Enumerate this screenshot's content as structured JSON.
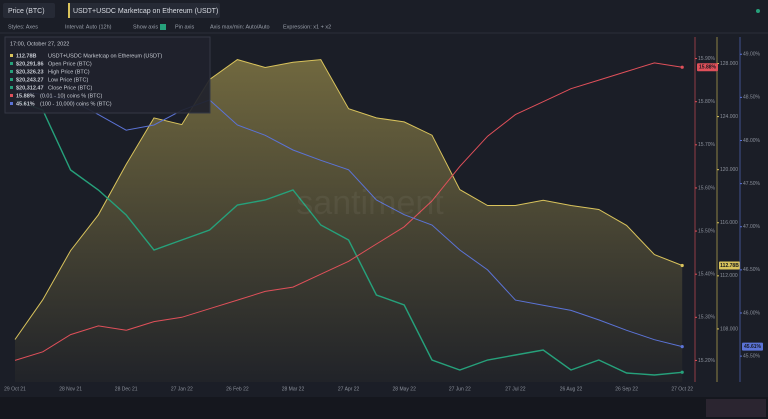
{
  "toolbar": {
    "tabs": [
      "Price (BTC)",
      "USDT+USDC Marketcap on Ethereum (USDT)"
    ],
    "settings": [
      "Styles: Axes",
      "Interval: Auto (12h)",
      "Show axis",
      "Pin axis",
      "Axis max/min: Auto/Auto",
      "Expression: x1 + x2"
    ]
  },
  "tooltip": {
    "title": "17:00, October 27, 2022",
    "rows": [
      {
        "value": "$20,291.86",
        "label": "Open Price (BTC)"
      },
      {
        "value": "$20,326.23",
        "label": "High Price (BTC)"
      },
      {
        "value": "$20,243.27",
        "label": "Low Price (BTC)"
      }
    ]
  },
  "chart_data": {
    "type": "line",
    "watermark": "santiment",
    "categories": [
      "29 Oct 21",
      null,
      "28 Nov 21",
      null,
      "28 Dec 21",
      null,
      "27 Jan 22",
      null,
      "26 Feb 22",
      null,
      "28 Mar 22",
      null,
      "27 Apr 22",
      null,
      "28 May 22",
      null,
      "27 Jun 22",
      null,
      "27 Jul 22",
      null,
      "26 Aug 22",
      null,
      "26 Sep 22",
      null,
      "27 Oct 22"
    ],
    "series": [
      {
        "name": "USDT+USDC Marketcap on Ethereum (USDT)",
        "color": "#d9c35c",
        "fill": true,
        "values": [
          107.2,
          110.2,
          113.9,
          116.6,
          120.4,
          123.9,
          123.4,
          126.8,
          128.3,
          127.7,
          128.1,
          128.3,
          124.6,
          123.9,
          123.6,
          122.6,
          118.5,
          117.3,
          117.3,
          117.7,
          117.3,
          117.0,
          115.8,
          113.6,
          112.78
        ],
        "value_labels": [
          null,
          null,
          null,
          null,
          null,
          null,
          null,
          null,
          null,
          null,
          null,
          null,
          null,
          null,
          null,
          null,
          null,
          null,
          null,
          null,
          null,
          null,
          null,
          null,
          "112.78B"
        ],
        "ylim": [
          104,
          130
        ],
        "yticks": [
          {
            "value": 108,
            "label": "108.000"
          },
          {
            "value": 112,
            "label": "112.000"
          },
          {
            "value": 116,
            "label": "116.000"
          },
          {
            "value": 120,
            "label": "120.000"
          },
          {
            "value": 124,
            "label": "124.000"
          },
          {
            "value": 128,
            "label": "128.000"
          }
        ]
      },
      {
        "name": "Close Price (BTC)",
        "color": "#26a17b",
        "fill": false,
        "values": [
          59850,
          58390,
          49680,
          46780,
          43150,
          38070,
          39520,
          40970,
          44600,
          45330,
          46780,
          41700,
          39520,
          31530,
          30080,
          22090,
          20640,
          22090,
          22820,
          23550,
          20640,
          22090,
          20210,
          19920,
          20312.47
        ],
        "value_labels": [
          null,
          null,
          null,
          null,
          null,
          null,
          null,
          null,
          null,
          null,
          null,
          null,
          null,
          null,
          null,
          null,
          null,
          null,
          null,
          null,
          null,
          null,
          null,
          null,
          "$20,312.47"
        ],
        "ylim": [
          18900,
          69000
        ]
      },
      {
        "name": "(0.01 - 10) coins % (BTC)",
        "color": "#e0505a",
        "fill": false,
        "values": [
          15.2,
          15.22,
          15.26,
          15.28,
          15.27,
          15.29,
          15.3,
          15.32,
          15.34,
          15.36,
          15.37,
          15.4,
          15.43,
          15.47,
          15.51,
          15.57,
          15.65,
          15.72,
          15.77,
          15.8,
          15.83,
          15.85,
          15.87,
          15.89,
          15.88
        ],
        "value_labels": [
          null,
          null,
          null,
          null,
          null,
          null,
          null,
          null,
          null,
          null,
          null,
          null,
          null,
          null,
          null,
          null,
          null,
          null,
          null,
          null,
          null,
          null,
          null,
          null,
          "15.88%"
        ],
        "ylim": [
          15.15,
          15.95
        ],
        "yticks": [
          {
            "value": 15.2,
            "label": "15.20%"
          },
          {
            "value": 15.3,
            "label": "15.30%"
          },
          {
            "value": 15.4,
            "label": "15.40%"
          },
          {
            "value": 15.5,
            "label": "15.50%"
          },
          {
            "value": 15.6,
            "label": "15.60%"
          },
          {
            "value": 15.7,
            "label": "15.70%"
          },
          {
            "value": 15.8,
            "label": "15.80%"
          },
          {
            "value": 15.9,
            "label": "15.90%"
          }
        ]
      },
      {
        "name": "(100 - 10,000) coins % (BTC)",
        "color": "#5b73d6",
        "fill": false,
        "values": [
          48.59,
          48.53,
          48.47,
          48.3,
          48.12,
          48.18,
          48.35,
          48.47,
          48.18,
          48.06,
          47.89,
          47.77,
          47.66,
          47.31,
          47.14,
          47.02,
          46.73,
          46.5,
          46.15,
          46.09,
          46.03,
          45.92,
          45.8,
          45.69,
          45.61
        ],
        "value_labels": [
          null,
          null,
          null,
          null,
          null,
          null,
          null,
          null,
          null,
          null,
          null,
          null,
          null,
          null,
          null,
          null,
          null,
          null,
          null,
          null,
          null,
          null,
          null,
          null,
          "45.61%"
        ],
        "ylim": [
          45.2,
          49.2
        ],
        "yticks": [
          {
            "value": 45.5,
            "label": "45.50%"
          },
          {
            "value": 46,
            "label": "46.00%"
          },
          {
            "value": 46.5,
            "label": "46.50%"
          },
          {
            "value": 47,
            "label": "47.00%"
          },
          {
            "value": 47.5,
            "label": "47.50%"
          },
          {
            "value": 48,
            "label": "48.00%"
          },
          {
            "value": 48.5,
            "label": "48.50%"
          },
          {
            "value": 49,
            "label": "49.00%"
          }
        ]
      }
    ]
  }
}
